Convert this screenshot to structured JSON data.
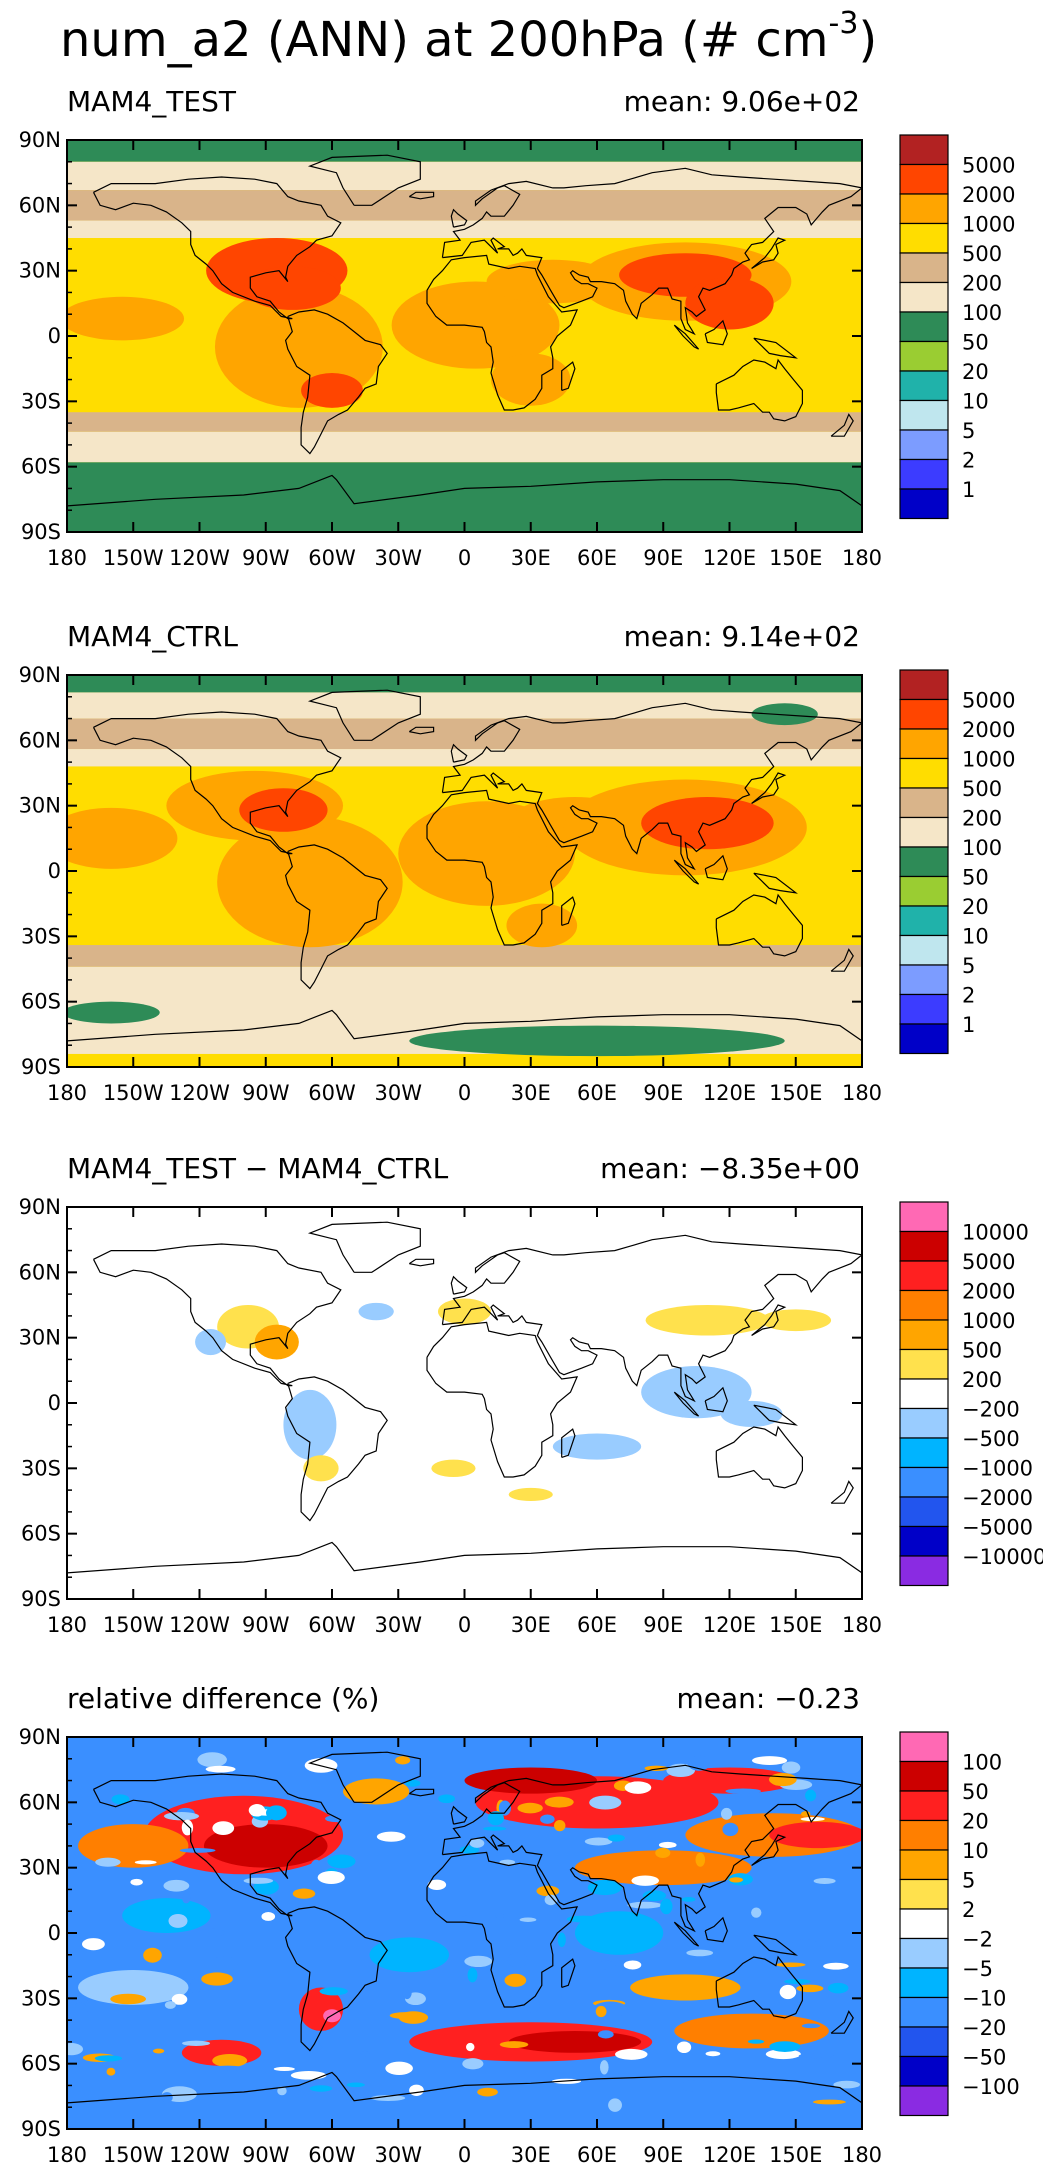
{
  "title": {
    "text": "num_a2 (ANN) at 200hPa (# cm",
    "superscript": "-3",
    "close": ")"
  },
  "colors": {
    "levels": [
      "#0000c8",
      "#3c3cff",
      "#7c9cff",
      "#bfe6ee",
      "#20b2aa",
      "#9acd32",
      "#2e8b57",
      "#f5e6c8",
      "#d9b48a",
      "#ffdd00",
      "#ffa500",
      "#ff4500",
      "#b22222"
    ],
    "diverging": [
      "#8a2be2",
      "#0000c8",
      "#2255ee",
      "#3a8fff",
      "#00b4ff",
      "#99ccff",
      "#ffffff",
      "#ffe14d",
      "#ffa500",
      "#ff7f00",
      "#ff2020",
      "#cc0000",
      "#ff69b4"
    ]
  },
  "chart_data": [
    {
      "type": "heatmap",
      "title": "MAM4_TEST",
      "mean_text": "mean: 9.06e+02",
      "x_ticks": [
        "180",
        "150W",
        "120W",
        "90W",
        "60W",
        "30W",
        "0",
        "30E",
        "60E",
        "90E",
        "120E",
        "150E",
        "180"
      ],
      "y_ticks": [
        "90N",
        "60N",
        "30N",
        "0",
        "30S",
        "60S",
        "90S"
      ],
      "xlim": [
        -180,
        180
      ],
      "ylim": [
        -90,
        90
      ],
      "colorbar": [
        "5000",
        "2000",
        "1000",
        "500",
        "200",
        "100",
        "50",
        "20",
        "10",
        "5",
        "2",
        "1"
      ],
      "palette": "levels"
    },
    {
      "type": "heatmap",
      "title": "MAM4_CTRL",
      "mean_text": "mean: 9.14e+02",
      "x_ticks": [
        "180",
        "150W",
        "120W",
        "90W",
        "60W",
        "30W",
        "0",
        "30E",
        "60E",
        "90E",
        "120E",
        "150E",
        "180"
      ],
      "y_ticks": [
        "90N",
        "60N",
        "30N",
        "0",
        "30S",
        "60S",
        "90S"
      ],
      "xlim": [
        -180,
        180
      ],
      "ylim": [
        -90,
        90
      ],
      "colorbar": [
        "5000",
        "2000",
        "1000",
        "500",
        "200",
        "100",
        "50",
        "20",
        "10",
        "5",
        "2",
        "1"
      ],
      "palette": "levels"
    },
    {
      "type": "heatmap",
      "title": "MAM4_TEST − MAM4_CTRL",
      "mean_text": "mean: −8.35e+00",
      "x_ticks": [
        "180",
        "150W",
        "120W",
        "90W",
        "60W",
        "30W",
        "0",
        "30E",
        "60E",
        "90E",
        "120E",
        "150E",
        "180"
      ],
      "y_ticks": [
        "90N",
        "60N",
        "30N",
        "0",
        "30S",
        "60S",
        "90S"
      ],
      "xlim": [
        -180,
        180
      ],
      "ylim": [
        -90,
        90
      ],
      "colorbar": [
        "10000",
        "5000",
        "2000",
        "1000",
        "500",
        "200",
        "−200",
        "−500",
        "−1000",
        "−2000",
        "−5000",
        "−10000"
      ],
      "palette": "diverging"
    },
    {
      "type": "heatmap",
      "title": "relative difference (%)",
      "mean_text": "mean: −0.23",
      "x_ticks": [
        "180",
        "150W",
        "120W",
        "90W",
        "60W",
        "30W",
        "0",
        "30E",
        "60E",
        "90E",
        "120E",
        "150E",
        "180"
      ],
      "y_ticks": [
        "90N",
        "60N",
        "30N",
        "0",
        "30S",
        "60S",
        "90S"
      ],
      "xlim": [
        -180,
        180
      ],
      "ylim": [
        -90,
        90
      ],
      "colorbar": [
        "100",
        "50",
        "20",
        "10",
        "5",
        "2",
        "−2",
        "−5",
        "−10",
        "−20",
        "−50",
        "−100"
      ],
      "palette": "diverging"
    }
  ]
}
